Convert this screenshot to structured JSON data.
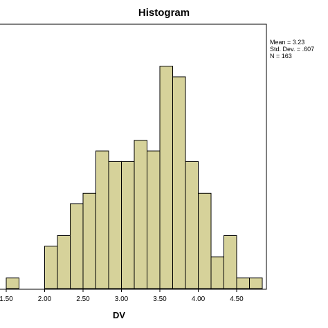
{
  "chart_data": {
    "type": "bar",
    "title": "Histogram",
    "xlabel": "DV",
    "ylabel": "",
    "bar_color": "#d6d29a",
    "bar_outline": "#000000",
    "bin_width": 0.1667,
    "bin_starts": [
      1.5,
      1.667,
      1.833,
      2.0,
      2.167,
      2.333,
      2.5,
      2.667,
      2.833,
      3.0,
      3.167,
      3.333,
      3.5,
      3.667,
      3.833,
      4.0,
      4.167,
      4.333,
      4.5,
      4.667
    ],
    "counts": [
      1,
      0,
      0,
      4,
      5,
      8,
      9,
      13,
      12,
      12,
      14,
      13,
      21,
      20,
      12,
      9,
      3,
      5,
      1,
      1
    ],
    "xlim": [
      1.5,
      4.75
    ],
    "ylim": [
      0,
      23
    ],
    "x_ticks": [
      1.5,
      2.0,
      2.5,
      3.0,
      3.5,
      4.0,
      4.5
    ],
    "x_tick_labels": [
      "1.50",
      "2.00",
      "2.50",
      "3.00",
      "3.50",
      "4.00",
      "4.50"
    ],
    "stats": {
      "mean": "Mean = 3.23",
      "std_dev": "Std. Dev. = .607",
      "n": "N = 163"
    }
  }
}
